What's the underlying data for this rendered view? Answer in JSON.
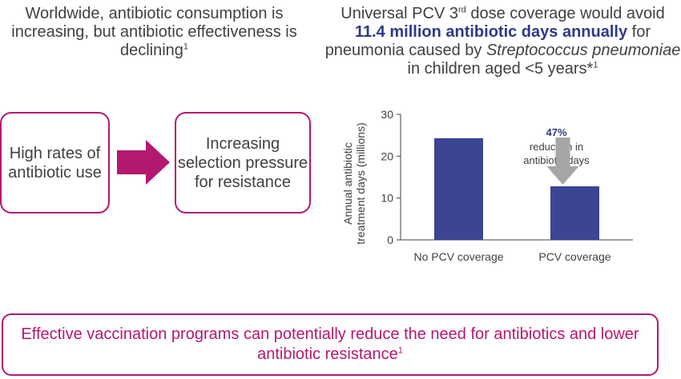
{
  "left_heading": {
    "text": "Worldwide, antibiotic consumption is increasing, but antibiotic effectiveness is declining",
    "ref": "1"
  },
  "right_heading": {
    "part1": "Universal PCV 3",
    "sup1": "rd",
    "part2": " dose coverage would avoid ",
    "highlight": "11.4 million antibiotic days annually",
    "part3": " for pneumonia caused by ",
    "italic": "Streptococcus pneumoniae",
    "part4": " in children aged <5 years*",
    "ref": "1"
  },
  "flow": {
    "box1": "High rates of antibiotic use",
    "box2": "Increasing selection pressure for resistance",
    "arrow_color": "#b5186f"
  },
  "chart_data": {
    "type": "bar",
    "categories": [
      "No PCV coverage",
      "PCV coverage"
    ],
    "values": [
      24.3,
      12.8
    ],
    "ylabel": "Annual antibiotic treatment days (millions)",
    "ylim": [
      0,
      30
    ],
    "yticks": [
      0,
      10,
      20,
      30
    ],
    "bar_color": "#3b4593",
    "annotation": {
      "percent": "47%",
      "line1": "reduction in",
      "line2": "antibiotic days",
      "arrow_color": "#a6a6a6"
    }
  },
  "conclusion": {
    "text": "Effective vaccination programs can potentially reduce the need for antibiotics and lower antibiotic resistance",
    "ref": "1"
  }
}
